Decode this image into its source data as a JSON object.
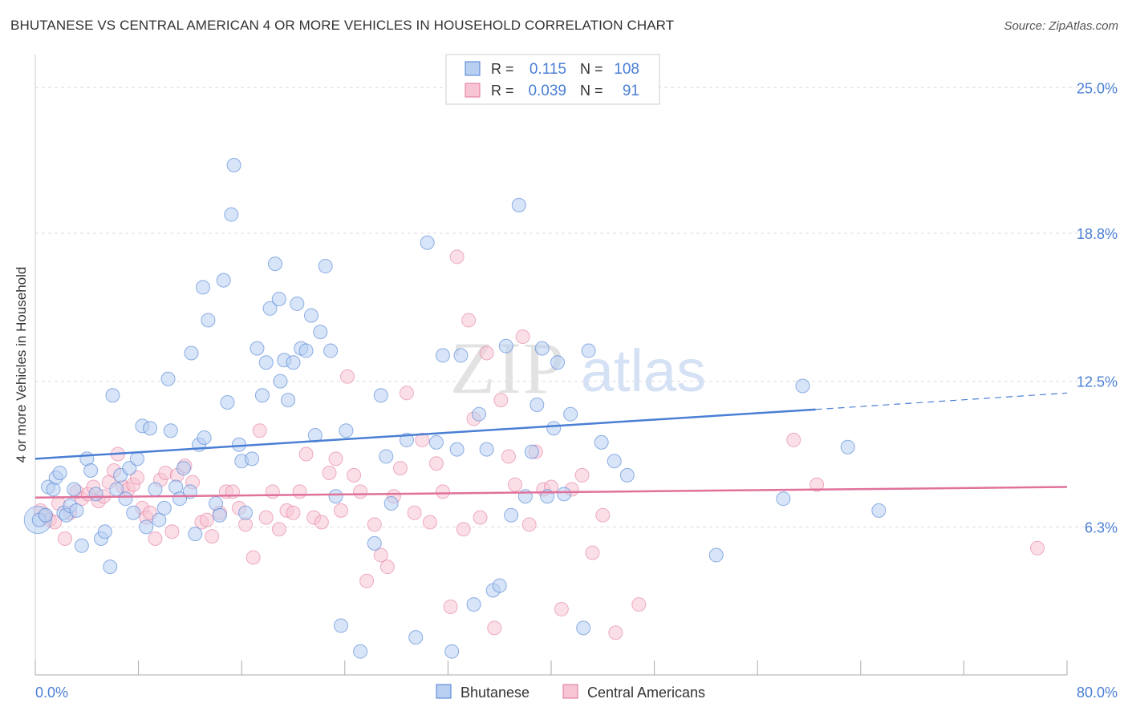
{
  "title": "BHUTANESE VS CENTRAL AMERICAN 4 OR MORE VEHICLES IN HOUSEHOLD CORRELATION CHART",
  "source": "Source: ZipAtlas.com",
  "colors": {
    "blue": "#4a7fd4",
    "blue_fill": "#b8cff2",
    "pink": "#e0719b",
    "pink_fill": "#f7c4d4",
    "axis_label": "#4a7fd4",
    "grid": "#dddddd"
  },
  "legend_top": {
    "rows": [
      {
        "r_label": "R =",
        "r_value": "0.115",
        "n_label": "N =",
        "n_value": "108"
      },
      {
        "r_label": "R =",
        "r_value": "0.039",
        "n_label": "N =",
        "n_value": "91"
      }
    ]
  },
  "watermark": {
    "zip": "ZIP",
    "atlas": "atlas"
  },
  "chart_data": {
    "type": "scatter",
    "xlabel": "",
    "ylabel": "4 or more Vehicles in Household",
    "xlim": [
      0,
      80
    ],
    "ylim": [
      0,
      26
    ],
    "x_tick_labels": [
      "0.0%",
      "80.0%"
    ],
    "y_ticks": [
      6.3,
      12.5,
      18.8,
      25.0
    ],
    "y_tick_labels": [
      "6.3%",
      "12.5%",
      "18.8%",
      "25.0%"
    ],
    "grid": "horizontal dashed",
    "legend_position": "bottom-center",
    "series": [
      {
        "name": "Bhutanese",
        "trend": {
          "x0": 0,
          "y0": 9.2,
          "x1": 60.5,
          "y1": 11.3,
          "dash_to_x": 80,
          "dash_to_y": 12.0
        },
        "points": [
          [
            0.3,
            6.6
          ],
          [
            0.8,
            6.8
          ],
          [
            1.0,
            8.0
          ],
          [
            1.4,
            7.9
          ],
          [
            1.6,
            8.4
          ],
          [
            1.9,
            8.6
          ],
          [
            2.2,
            6.9
          ],
          [
            2.4,
            6.8
          ],
          [
            2.7,
            7.2
          ],
          [
            3.0,
            7.9
          ],
          [
            3.2,
            7.0
          ],
          [
            3.6,
            5.5
          ],
          [
            4.0,
            9.2
          ],
          [
            4.3,
            8.7
          ],
          [
            4.7,
            7.7
          ],
          [
            5.1,
            5.8
          ],
          [
            5.4,
            6.1
          ],
          [
            5.8,
            4.6
          ],
          [
            6.0,
            11.9
          ],
          [
            6.3,
            7.9
          ],
          [
            6.6,
            8.5
          ],
          [
            7.0,
            7.5
          ],
          [
            7.3,
            8.8
          ],
          [
            7.6,
            6.9
          ],
          [
            7.9,
            9.2
          ],
          [
            8.3,
            10.6
          ],
          [
            8.6,
            6.3
          ],
          [
            8.9,
            10.5
          ],
          [
            9.3,
            7.9
          ],
          [
            9.6,
            6.6
          ],
          [
            10.0,
            7.1
          ],
          [
            10.3,
            12.6
          ],
          [
            10.5,
            10.4
          ],
          [
            10.9,
            8.0
          ],
          [
            11.2,
            7.5
          ],
          [
            11.5,
            8.8
          ],
          [
            12.0,
            7.8
          ],
          [
            12.1,
            13.7
          ],
          [
            12.4,
            6.0
          ],
          [
            12.7,
            9.8
          ],
          [
            13.0,
            16.5
          ],
          [
            13.1,
            10.1
          ],
          [
            13.4,
            15.1
          ],
          [
            14.0,
            7.3
          ],
          [
            14.3,
            6.8
          ],
          [
            14.6,
            16.8
          ],
          [
            14.9,
            11.6
          ],
          [
            15.2,
            19.6
          ],
          [
            15.4,
            21.7
          ],
          [
            15.8,
            9.8
          ],
          [
            16.0,
            9.1
          ],
          [
            16.3,
            6.9
          ],
          [
            16.8,
            9.2
          ],
          [
            17.2,
            13.9
          ],
          [
            17.6,
            11.9
          ],
          [
            17.9,
            13.3
          ],
          [
            18.2,
            15.6
          ],
          [
            18.6,
            17.5
          ],
          [
            18.9,
            16.0
          ],
          [
            19.0,
            12.5
          ],
          [
            19.3,
            13.4
          ],
          [
            19.6,
            11.7
          ],
          [
            20.0,
            13.3
          ],
          [
            20.3,
            15.8
          ],
          [
            20.6,
            13.9
          ],
          [
            21.0,
            13.8
          ],
          [
            21.4,
            15.3
          ],
          [
            21.7,
            10.2
          ],
          [
            22.1,
            14.6
          ],
          [
            22.5,
            17.4
          ],
          [
            22.9,
            13.8
          ],
          [
            23.3,
            7.6
          ],
          [
            23.7,
            2.1
          ],
          [
            24.1,
            10.4
          ],
          [
            25.2,
            1.0
          ],
          [
            26.3,
            5.6
          ],
          [
            26.8,
            11.9
          ],
          [
            27.2,
            9.3
          ],
          [
            27.6,
            7.3
          ],
          [
            28.8,
            10.0
          ],
          [
            29.5,
            1.6
          ],
          [
            30.4,
            18.4
          ],
          [
            31.1,
            9.9
          ],
          [
            31.6,
            13.6
          ],
          [
            32.3,
            1.0
          ],
          [
            32.7,
            9.6
          ],
          [
            33.0,
            13.6
          ],
          [
            34.0,
            3.0
          ],
          [
            34.4,
            11.1
          ],
          [
            35.0,
            9.6
          ],
          [
            35.5,
            3.6
          ],
          [
            36.0,
            3.8
          ],
          [
            36.5,
            14.0
          ],
          [
            36.9,
            6.8
          ],
          [
            37.5,
            20.0
          ],
          [
            38.0,
            7.6
          ],
          [
            38.5,
            9.5
          ],
          [
            38.9,
            11.5
          ],
          [
            39.3,
            13.9
          ],
          [
            39.7,
            7.6
          ],
          [
            40.2,
            10.5
          ],
          [
            40.5,
            13.3
          ],
          [
            41.0,
            7.7
          ],
          [
            41.5,
            11.1
          ],
          [
            42.5,
            2.0
          ],
          [
            42.9,
            13.8
          ],
          [
            43.9,
            9.9
          ],
          [
            44.9,
            9.1
          ],
          [
            45.9,
            8.5
          ],
          [
            52.8,
            5.1
          ],
          [
            58.0,
            7.5
          ],
          [
            59.5,
            12.3
          ],
          [
            63.0,
            9.7
          ],
          [
            65.4,
            7.0
          ]
        ],
        "big_point": [
          0.2,
          6.6
        ]
      },
      {
        "name": "Central Americans",
        "trend": {
          "x0": 0,
          "y0": 7.55,
          "x1": 80,
          "y1": 8.0
        },
        "points": [
          [
            0.4,
            7.0
          ],
          [
            0.8,
            6.8
          ],
          [
            1.1,
            6.6
          ],
          [
            1.5,
            6.5
          ],
          [
            1.8,
            7.3
          ],
          [
            2.3,
            5.8
          ],
          [
            2.7,
            6.9
          ],
          [
            3.2,
            7.8
          ],
          [
            3.6,
            7.5
          ],
          [
            4.1,
            7.7
          ],
          [
            4.5,
            8.0
          ],
          [
            4.9,
            7.4
          ],
          [
            5.3,
            7.6
          ],
          [
            5.7,
            8.2
          ],
          [
            6.1,
            8.7
          ],
          [
            6.4,
            9.4
          ],
          [
            6.8,
            8.0
          ],
          [
            7.2,
            7.9
          ],
          [
            7.6,
            8.1
          ],
          [
            7.9,
            8.4
          ],
          [
            8.3,
            7.1
          ],
          [
            8.6,
            6.7
          ],
          [
            8.9,
            6.9
          ],
          [
            9.3,
            5.8
          ],
          [
            9.7,
            8.3
          ],
          [
            10.1,
            8.6
          ],
          [
            10.6,
            6.1
          ],
          [
            11.0,
            8.5
          ],
          [
            11.6,
            8.9
          ],
          [
            12.2,
            8.2
          ],
          [
            12.9,
            6.5
          ],
          [
            13.3,
            6.6
          ],
          [
            13.7,
            5.9
          ],
          [
            14.3,
            6.9
          ],
          [
            14.8,
            7.8
          ],
          [
            15.3,
            7.8
          ],
          [
            15.8,
            7.1
          ],
          [
            16.3,
            6.4
          ],
          [
            16.9,
            5.0
          ],
          [
            17.4,
            10.4
          ],
          [
            17.9,
            6.7
          ],
          [
            18.4,
            7.8
          ],
          [
            18.9,
            6.2
          ],
          [
            19.5,
            7.0
          ],
          [
            20.0,
            6.9
          ],
          [
            20.5,
            7.8
          ],
          [
            21.0,
            9.4
          ],
          [
            21.6,
            6.7
          ],
          [
            22.2,
            6.5
          ],
          [
            22.8,
            8.6
          ],
          [
            23.3,
            9.2
          ],
          [
            23.7,
            7.0
          ],
          [
            24.2,
            12.7
          ],
          [
            24.7,
            8.5
          ],
          [
            25.2,
            7.8
          ],
          [
            25.7,
            4.0
          ],
          [
            26.3,
            6.4
          ],
          [
            26.8,
            5.1
          ],
          [
            27.3,
            4.6
          ],
          [
            27.8,
            7.6
          ],
          [
            28.3,
            8.8
          ],
          [
            28.8,
            12.0
          ],
          [
            29.4,
            6.9
          ],
          [
            30.0,
            10.0
          ],
          [
            30.6,
            6.5
          ],
          [
            31.1,
            9.0
          ],
          [
            31.6,
            7.8
          ],
          [
            32.2,
            2.9
          ],
          [
            32.7,
            17.8
          ],
          [
            33.2,
            6.2
          ],
          [
            33.6,
            15.1
          ],
          [
            34.0,
            10.9
          ],
          [
            34.5,
            6.7
          ],
          [
            35.0,
            13.7
          ],
          [
            35.6,
            2.0
          ],
          [
            36.1,
            11.7
          ],
          [
            36.7,
            9.3
          ],
          [
            37.2,
            8.1
          ],
          [
            37.8,
            14.4
          ],
          [
            38.3,
            6.4
          ],
          [
            38.8,
            9.5
          ],
          [
            39.4,
            7.9
          ],
          [
            40.0,
            8.0
          ],
          [
            40.8,
            2.8
          ],
          [
            41.6,
            7.9
          ],
          [
            42.4,
            8.5
          ],
          [
            43.2,
            5.2
          ],
          [
            44.0,
            6.8
          ],
          [
            45.0,
            1.8
          ],
          [
            46.8,
            3.0
          ],
          [
            58.8,
            10.0
          ],
          [
            60.6,
            8.1
          ],
          [
            77.7,
            5.4
          ]
        ]
      }
    ]
  },
  "legend_bottom": {
    "items": [
      {
        "label": "Bhutanese"
      },
      {
        "label": "Central Americans"
      }
    ]
  }
}
